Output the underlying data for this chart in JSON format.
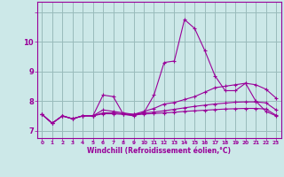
{
  "xlabel": "Windchill (Refroidissement éolien,°C)",
  "xlim": [
    -0.5,
    23.5
  ],
  "ylim": [
    6.75,
    11.35
  ],
  "xticks": [
    0,
    1,
    2,
    3,
    4,
    5,
    6,
    7,
    8,
    9,
    10,
    11,
    12,
    13,
    14,
    15,
    16,
    17,
    18,
    19,
    20,
    21,
    22,
    23
  ],
  "yticks": [
    7,
    8,
    9,
    10,
    11
  ],
  "ytick_labels": [
    "7",
    "8",
    "9",
    "10",
    ""
  ],
  "bg_color": "#cce8e8",
  "line_color": "#990099",
  "grid_color": "#99bbbb",
  "lines": [
    [
      7.55,
      7.25,
      7.5,
      7.4,
      7.5,
      7.5,
      8.2,
      8.15,
      7.55,
      7.5,
      7.6,
      8.2,
      9.3,
      9.35,
      10.75,
      10.45,
      9.7,
      8.85,
      8.35,
      8.35,
      8.6,
      8.0,
      7.65,
      7.5
    ],
    [
      7.55,
      7.25,
      7.5,
      7.4,
      7.5,
      7.5,
      7.7,
      7.65,
      7.6,
      7.55,
      7.65,
      7.75,
      7.9,
      7.95,
      8.05,
      8.15,
      8.3,
      8.45,
      8.5,
      8.55,
      8.6,
      8.55,
      8.4,
      8.1
    ],
    [
      7.55,
      7.25,
      7.5,
      7.4,
      7.5,
      7.5,
      7.6,
      7.6,
      7.57,
      7.55,
      7.6,
      7.63,
      7.67,
      7.72,
      7.77,
      7.82,
      7.86,
      7.9,
      7.93,
      7.96,
      7.97,
      7.97,
      7.94,
      7.7
    ],
    [
      7.55,
      7.25,
      7.5,
      7.4,
      7.5,
      7.5,
      7.57,
      7.57,
      7.55,
      7.53,
      7.56,
      7.58,
      7.6,
      7.62,
      7.65,
      7.67,
      7.69,
      7.71,
      7.73,
      7.74,
      7.75,
      7.75,
      7.73,
      7.52
    ]
  ]
}
